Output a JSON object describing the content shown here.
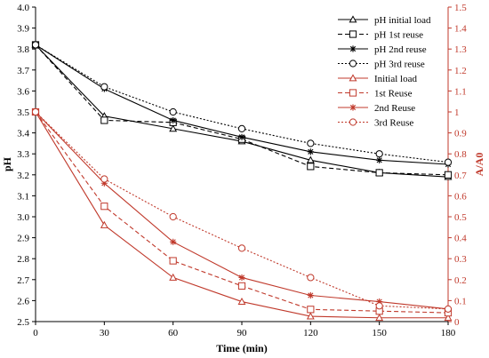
{
  "chart_data": {
    "type": "line",
    "x": [
      0,
      30,
      60,
      90,
      120,
      150,
      180
    ],
    "xlabel": "Time (min)",
    "ylabel": "pH",
    "y2label": "A/A0",
    "xlim": [
      0,
      180
    ],
    "ylim": [
      2.5,
      4.0
    ],
    "y2lim": [
      0,
      1.5
    ],
    "x_ticks": [
      "0",
      "30",
      "60",
      "90",
      "120",
      "150",
      "180"
    ],
    "y_ticks": [
      "2.5",
      "2.6",
      "2.7",
      "2.8",
      "2.9",
      "3.0",
      "3.1",
      "3.2",
      "3.3",
      "3.4",
      "3.5",
      "3.6",
      "3.7",
      "3.8",
      "3.9",
      "4.0"
    ],
    "y2_ticks": [
      "0",
      "0.1",
      "0.2",
      "0.3",
      "0.4",
      "0.5",
      "0.6",
      "0.7",
      "0.8",
      "0.9",
      "1",
      "1.1",
      "1.2",
      "1.3",
      "1.4",
      "1.5"
    ],
    "grid": false,
    "legend_position": "top-right",
    "series": [
      {
        "name": "pH initial load",
        "axis": "left",
        "color": "#000000",
        "dash": "solid",
        "marker": "triangle",
        "values": [
          3.82,
          3.48,
          3.42,
          3.36,
          3.27,
          3.21,
          3.19
        ]
      },
      {
        "name": "pH 1st reuse",
        "axis": "left",
        "color": "#000000",
        "dash": "dashed",
        "marker": "square",
        "values": [
          3.82,
          3.46,
          3.45,
          3.37,
          3.24,
          3.21,
          3.2
        ]
      },
      {
        "name": "pH 2nd reuse",
        "axis": "left",
        "color": "#000000",
        "dash": "solid",
        "marker": "star",
        "values": [
          3.82,
          3.61,
          3.46,
          3.38,
          3.31,
          3.27,
          3.25
        ]
      },
      {
        "name": "pH 3rd reuse",
        "axis": "left",
        "color": "#000000",
        "dash": "dotted",
        "marker": "circle",
        "values": [
          3.82,
          3.62,
          3.5,
          3.42,
          3.35,
          3.3,
          3.26
        ]
      },
      {
        "name": "Initial load",
        "axis": "right",
        "color": "#c0392b",
        "dash": "solid",
        "marker": "triangle",
        "values": [
          1.0,
          0.46,
          0.21,
          0.095,
          0.025,
          0.018,
          0.018
        ]
      },
      {
        "name": "1st Reuse",
        "axis": "right",
        "color": "#c0392b",
        "dash": "dashed",
        "marker": "square",
        "values": [
          1.0,
          0.55,
          0.29,
          0.17,
          0.058,
          0.05,
          0.042
        ]
      },
      {
        "name": "2nd Reuse",
        "axis": "right",
        "color": "#c0392b",
        "dash": "solid",
        "marker": "star",
        "values": [
          1.0,
          0.66,
          0.38,
          0.21,
          0.125,
          0.095,
          0.06
        ]
      },
      {
        "name": "3rd Reuse",
        "axis": "right",
        "color": "#c0392b",
        "dash": "dotted",
        "marker": "circle",
        "values": [
          1.0,
          0.68,
          0.5,
          0.35,
          0.21,
          0.075,
          0.06
        ]
      }
    ]
  }
}
